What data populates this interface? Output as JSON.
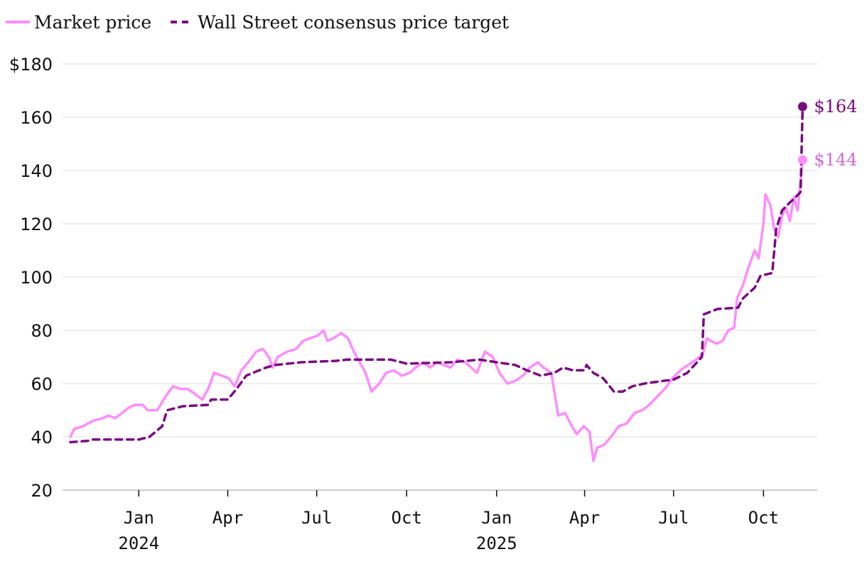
{
  "colors": {
    "market": "#ff8cff",
    "target": "#7a0a82",
    "market_label": "#d36ad6",
    "grid": "#dddddd",
    "axis": "#bbbbbb"
  },
  "chart_data": {
    "type": "line",
    "title": "",
    "xlabel": "",
    "ylabel": "",
    "x_range": [
      "2023-10-15",
      "2025-11-25"
    ],
    "ylim": [
      20,
      180
    ],
    "y_ticks": [
      20,
      40,
      60,
      80,
      100,
      120,
      140,
      160,
      180
    ],
    "y_tick_labels": [
      "20",
      "40",
      "60",
      "80",
      "100",
      "120",
      "140",
      "160",
      "$180"
    ],
    "x_ticks": [
      {
        "date": "2024-01-01",
        "label": "Jan",
        "year": "2024"
      },
      {
        "date": "2024-04-01",
        "label": "Apr",
        "year": ""
      },
      {
        "date": "2024-07-01",
        "label": "Jul",
        "year": ""
      },
      {
        "date": "2024-10-01",
        "label": "Oct",
        "year": ""
      },
      {
        "date": "2025-01-01",
        "label": "Jan",
        "year": "2025"
      },
      {
        "date": "2025-04-01",
        "label": "Apr",
        "year": ""
      },
      {
        "date": "2025-07-01",
        "label": "Jul",
        "year": ""
      },
      {
        "date": "2025-10-01",
        "label": "Oct",
        "year": ""
      }
    ],
    "grid": "horizontal",
    "legend_position": "top-left",
    "series": [
      {
        "name": "Market price",
        "style": "solid",
        "end_label": "$144",
        "end_value": 144,
        "points": [
          [
            "2023-10-23",
            40
          ],
          [
            "2023-10-27",
            43
          ],
          [
            "2023-11-05",
            44
          ],
          [
            "2023-11-15",
            46
          ],
          [
            "2023-11-25",
            47
          ],
          [
            "2023-12-01",
            48
          ],
          [
            "2023-12-08",
            47
          ],
          [
            "2023-12-15",
            49
          ],
          [
            "2023-12-22",
            51
          ],
          [
            "2023-12-28",
            52
          ],
          [
            "2024-01-05",
            52
          ],
          [
            "2024-01-10",
            50
          ],
          [
            "2024-01-20",
            50
          ],
          [
            "2024-01-28",
            55
          ],
          [
            "2024-02-05",
            59
          ],
          [
            "2024-02-12",
            58
          ],
          [
            "2024-02-20",
            58
          ],
          [
            "2024-02-28",
            56
          ],
          [
            "2024-03-06",
            54
          ],
          [
            "2024-03-12",
            58
          ],
          [
            "2024-03-18",
            64
          ],
          [
            "2024-03-26",
            63
          ],
          [
            "2024-04-02",
            62
          ],
          [
            "2024-04-08",
            59
          ],
          [
            "2024-04-15",
            65
          ],
          [
            "2024-04-22",
            68
          ],
          [
            "2024-04-30",
            72
          ],
          [
            "2024-05-07",
            73
          ],
          [
            "2024-05-13",
            70
          ],
          [
            "2024-05-17",
            66
          ],
          [
            "2024-05-22",
            70
          ],
          [
            "2024-06-01",
            72
          ],
          [
            "2024-06-10",
            73
          ],
          [
            "2024-06-17",
            76
          ],
          [
            "2024-06-24",
            77
          ],
          [
            "2024-07-02",
            78
          ],
          [
            "2024-07-08",
            80
          ],
          [
            "2024-07-12",
            76
          ],
          [
            "2024-07-18",
            77
          ],
          [
            "2024-07-26",
            79
          ],
          [
            "2024-08-02",
            77
          ],
          [
            "2024-08-08",
            72
          ],
          [
            "2024-08-14",
            68
          ],
          [
            "2024-08-20",
            64
          ],
          [
            "2024-08-26",
            57
          ],
          [
            "2024-09-03",
            60
          ],
          [
            "2024-09-10",
            64
          ],
          [
            "2024-09-18",
            65
          ],
          [
            "2024-09-26",
            63
          ],
          [
            "2024-10-04",
            64
          ],
          [
            "2024-10-10",
            66
          ],
          [
            "2024-10-18",
            68
          ],
          [
            "2024-10-25",
            66
          ],
          [
            "2024-11-01",
            68
          ],
          [
            "2024-11-08",
            67
          ],
          [
            "2024-11-15",
            66
          ],
          [
            "2024-11-22",
            69
          ],
          [
            "2024-11-30",
            68
          ],
          [
            "2024-12-06",
            66
          ],
          [
            "2024-12-12",
            64
          ],
          [
            "2024-12-20",
            72
          ],
          [
            "2024-12-28",
            70
          ],
          [
            "2025-01-04",
            64
          ],
          [
            "2025-01-12",
            60
          ],
          [
            "2025-01-20",
            61
          ],
          [
            "2025-01-28",
            63
          ],
          [
            "2025-02-04",
            66
          ],
          [
            "2025-02-12",
            68
          ],
          [
            "2025-02-18",
            66
          ],
          [
            "2025-02-26",
            64
          ],
          [
            "2025-03-05",
            48
          ],
          [
            "2025-03-12",
            49
          ],
          [
            "2025-03-19",
            44
          ],
          [
            "2025-03-24",
            41
          ],
          [
            "2025-03-31",
            44
          ],
          [
            "2025-04-06",
            42
          ],
          [
            "2025-04-10",
            31
          ],
          [
            "2025-04-14",
            36
          ],
          [
            "2025-04-21",
            37
          ],
          [
            "2025-04-28",
            40
          ],
          [
            "2025-05-06",
            44
          ],
          [
            "2025-05-14",
            45
          ],
          [
            "2025-05-22",
            49
          ],
          [
            "2025-05-30",
            50
          ],
          [
            "2025-06-06",
            52
          ],
          [
            "2025-06-14",
            55
          ],
          [
            "2025-06-22",
            58
          ],
          [
            "2025-06-30",
            62
          ],
          [
            "2025-07-08",
            65
          ],
          [
            "2025-07-16",
            67
          ],
          [
            "2025-07-24",
            69
          ],
          [
            "2025-07-31",
            71
          ],
          [
            "2025-08-04",
            77
          ],
          [
            "2025-08-08",
            76
          ],
          [
            "2025-08-14",
            75
          ],
          [
            "2025-08-20",
            76
          ],
          [
            "2025-08-26",
            80
          ],
          [
            "2025-09-01",
            81
          ],
          [
            "2025-09-04",
            92
          ],
          [
            "2025-09-10",
            97
          ],
          [
            "2025-09-16",
            104
          ],
          [
            "2025-09-22",
            110
          ],
          [
            "2025-09-26",
            107
          ],
          [
            "2025-10-01",
            120
          ],
          [
            "2025-10-03",
            131
          ],
          [
            "2025-10-08",
            127
          ],
          [
            "2025-10-12",
            118
          ],
          [
            "2025-10-16",
            115
          ],
          [
            "2025-10-20",
            123
          ],
          [
            "2025-10-24",
            126
          ],
          [
            "2025-10-28",
            121
          ],
          [
            "2025-11-01",
            130
          ],
          [
            "2025-11-05",
            125
          ],
          [
            "2025-11-10",
            144
          ]
        ]
      },
      {
        "name": "Wall Street consensus price target",
        "style": "dashed",
        "end_label": "$164",
        "end_value": 164,
        "points": [
          [
            "2023-10-23",
            38
          ],
          [
            "2023-11-10",
            38.5
          ],
          [
            "2023-11-15",
            39
          ],
          [
            "2024-01-01",
            39
          ],
          [
            "2024-01-12",
            40
          ],
          [
            "2024-01-25",
            44
          ],
          [
            "2024-01-30",
            50
          ],
          [
            "2024-02-15",
            51.5
          ],
          [
            "2024-03-12",
            52
          ],
          [
            "2024-03-15",
            54
          ],
          [
            "2024-04-01",
            54
          ],
          [
            "2024-04-10",
            58
          ],
          [
            "2024-04-20",
            63
          ],
          [
            "2024-05-10",
            66
          ],
          [
            "2024-05-20",
            67
          ],
          [
            "2024-06-15",
            68
          ],
          [
            "2024-07-20",
            68.5
          ],
          [
            "2024-08-01",
            69
          ],
          [
            "2024-09-15",
            69
          ],
          [
            "2024-10-01",
            67.5
          ],
          [
            "2024-11-15",
            68
          ],
          [
            "2024-12-15",
            69
          ],
          [
            "2025-01-01",
            68
          ],
          [
            "2025-01-20",
            67
          ],
          [
            "2025-02-01",
            65
          ],
          [
            "2025-02-15",
            63
          ],
          [
            "2025-03-01",
            64
          ],
          [
            "2025-03-10",
            66
          ],
          [
            "2025-03-20",
            65
          ],
          [
            "2025-04-01",
            65
          ],
          [
            "2025-04-03",
            67
          ],
          [
            "2025-04-10",
            64
          ],
          [
            "2025-04-20",
            62
          ],
          [
            "2025-05-01",
            57
          ],
          [
            "2025-05-10",
            57
          ],
          [
            "2025-05-20",
            59
          ],
          [
            "2025-06-01",
            60
          ],
          [
            "2025-06-20",
            61
          ],
          [
            "2025-07-01",
            61.5
          ],
          [
            "2025-07-15",
            64
          ],
          [
            "2025-07-30",
            70
          ],
          [
            "2025-08-01",
            86
          ],
          [
            "2025-08-15",
            88
          ],
          [
            "2025-09-05",
            88.5
          ],
          [
            "2025-09-10",
            92
          ],
          [
            "2025-09-22",
            96
          ],
          [
            "2025-09-28",
            100.5
          ],
          [
            "2025-10-10",
            101.5
          ],
          [
            "2025-10-14",
            118
          ],
          [
            "2025-10-20",
            125
          ],
          [
            "2025-10-28",
            128
          ],
          [
            "2025-11-03",
            130
          ],
          [
            "2025-11-08",
            132
          ],
          [
            "2025-11-10",
            164
          ]
        ]
      }
    ]
  }
}
